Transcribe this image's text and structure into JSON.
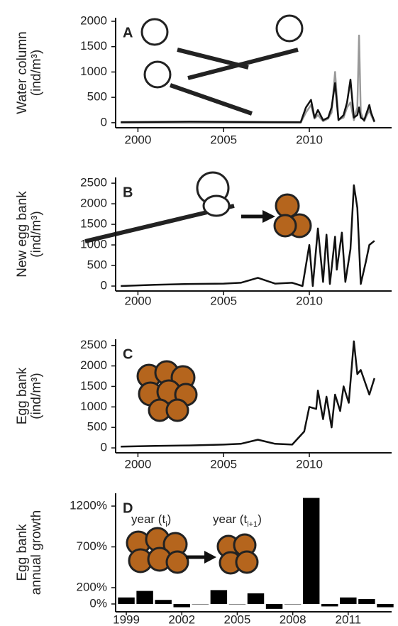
{
  "chart_data": [
    {
      "type": "line",
      "panel": "A",
      "ylabel": [
        "Water column",
        "(ind/m³)"
      ],
      "x": [
        1999,
        2003,
        2006,
        2009.5,
        2009.8,
        2010.1,
        2010.3,
        2010.5,
        2010.8,
        2011.1,
        2011.3,
        2011.5,
        2011.7,
        2012.0,
        2012.2,
        2012.4,
        2012.6,
        2012.8,
        2012.9,
        2013.0,
        2013.2,
        2013.5,
        2013.6,
        2013.8
      ],
      "series": [
        {
          "color": "#999999",
          "values": [
            0,
            0,
            0,
            0,
            200,
            350,
            80,
            150,
            30,
            80,
            200,
            1000,
            60,
            100,
            300,
            400,
            50,
            300,
            1720,
            200,
            30,
            250,
            150,
            10
          ]
        },
        {
          "color": "#111111",
          "values": [
            10,
            20,
            15,
            10,
            300,
            450,
            100,
            250,
            50,
            100,
            300,
            780,
            50,
            150,
            400,
            850,
            100,
            150,
            300,
            100,
            50,
            350,
            200,
            20
          ]
        }
      ],
      "xlim": [
        1998.7,
        2014.8
      ],
      "xticks": [
        2000,
        2005,
        2010
      ],
      "ylim": [
        -100,
        2070
      ],
      "yticks": [
        0,
        500,
        1000,
        1500,
        2000
      ]
    },
    {
      "type": "line",
      "panel": "B",
      "ylabel": [
        "New egg bank",
        "(ind/m³)"
      ],
      "x": [
        1999,
        2001,
        2003,
        2005,
        2006,
        2007,
        2008,
        2009,
        2009.6,
        2010.0,
        2010.2,
        2010.5,
        2010.8,
        2011.0,
        2011.2,
        2011.5,
        2011.6,
        2011.9,
        2012.1,
        2012.4,
        2012.6,
        2012.8,
        2013.0,
        2013.3,
        2013.5,
        2013.8
      ],
      "series": [
        {
          "color": "#111111",
          "values": [
            0,
            30,
            50,
            60,
            80,
            200,
            60,
            80,
            0,
            1000,
            0,
            1400,
            100,
            1250,
            50,
            1200,
            400,
            1300,
            100,
            900,
            2450,
            1900,
            50,
            600,
            1000,
            1100
          ]
        }
      ],
      "xlim": [
        1998.7,
        2014.8
      ],
      "xticks": [
        2000,
        2005,
        2010
      ],
      "ylim": [
        -120,
        2640
      ],
      "yticks": [
        0,
        500,
        1000,
        1500,
        2000,
        2500
      ]
    },
    {
      "type": "line",
      "panel": "C",
      "ylabel": [
        "Egg bank",
        "(ind/m³)"
      ],
      "x": [
        1999,
        2001,
        2003,
        2005,
        2006,
        2007,
        2008,
        2009,
        2009.7,
        2010.0,
        2010.4,
        2010.5,
        2010.8,
        2011.0,
        2011.3,
        2011.5,
        2011.8,
        2012.0,
        2012.3,
        2012.6,
        2012.8,
        2013.0,
        2013.5,
        2013.8
      ],
      "series": [
        {
          "color": "#111111",
          "values": [
            30,
            50,
            60,
            80,
            100,
            200,
            100,
            80,
            400,
            1000,
            950,
            1400,
            700,
            1250,
            500,
            1300,
            900,
            1500,
            1100,
            2600,
            1800,
            1900,
            1300,
            1700
          ]
        }
      ],
      "xlim": [
        1998.7,
        2014.8
      ],
      "xticks": [
        2000,
        2005,
        2010
      ],
      "ylim": [
        -120,
        2650
      ],
      "yticks": [
        0,
        500,
        1000,
        1500,
        2000,
        2500
      ]
    },
    {
      "type": "bar",
      "panel": "D",
      "ylabel": [
        "Egg bank",
        "annual growth"
      ],
      "categories": [
        "1999",
        null,
        null,
        "2002",
        null,
        null,
        "2005",
        null,
        null,
        "2008",
        null,
        null,
        "2011",
        null,
        null
      ],
      "values": [
        80,
        160,
        50,
        -40,
        0,
        170,
        0,
        130,
        -60,
        0,
        1300,
        -30,
        80,
        60,
        -40
      ],
      "color": "#000000",
      "ylim": [
        -96,
        1357
      ],
      "yticks": [
        {
          "value": 0,
          "label": "0%"
        },
        {
          "value": 200,
          "label": "200%"
        },
        {
          "value": 700,
          "label": "700%"
        },
        {
          "value": 1200,
          "label": "1200%"
        }
      ],
      "annotations": [
        {
          "text": "year (t",
          "sub": "i",
          "end": ")"
        },
        {
          "text": "year (t",
          "sub": "i+1",
          "end": ")"
        }
      ]
    }
  ]
}
